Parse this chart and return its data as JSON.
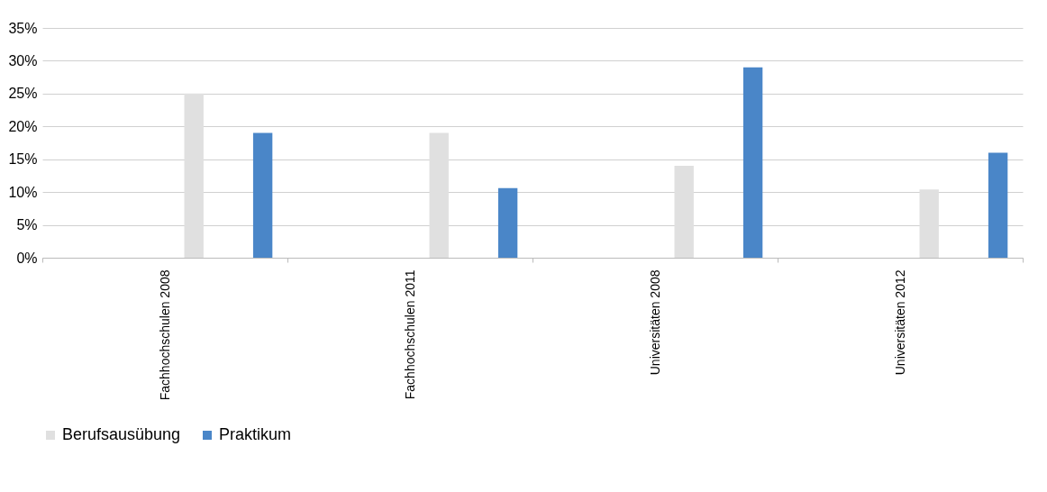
{
  "chart_data": {
    "type": "bar",
    "categories": [
      "Fachhochschulen 2008",
      "Fachhochschulen 2011",
      "Universitäten 2008",
      "Universitäten 2012"
    ],
    "series": [
      {
        "name": "Berufsausübung",
        "color": "#e0e0e0",
        "values": [
          25,
          19,
          14,
          10.4
        ]
      },
      {
        "name": "Praktikum",
        "color": "#4a86c8",
        "values": [
          19,
          10.6,
          29,
          16
        ]
      }
    ],
    "ylim": [
      0,
      35
    ],
    "yticks": [
      {
        "value": 0,
        "label": "0%"
      },
      {
        "value": 5,
        "label": "5%"
      },
      {
        "value": 10,
        "label": "10%"
      },
      {
        "value": 15,
        "label": "15%"
      },
      {
        "value": 20,
        "label": "20%"
      },
      {
        "value": 25,
        "label": "25%"
      },
      {
        "value": 30,
        "label": "30%"
      },
      {
        "value": 35,
        "label": "35%"
      }
    ],
    "grid": "y",
    "legend": "bottom"
  }
}
